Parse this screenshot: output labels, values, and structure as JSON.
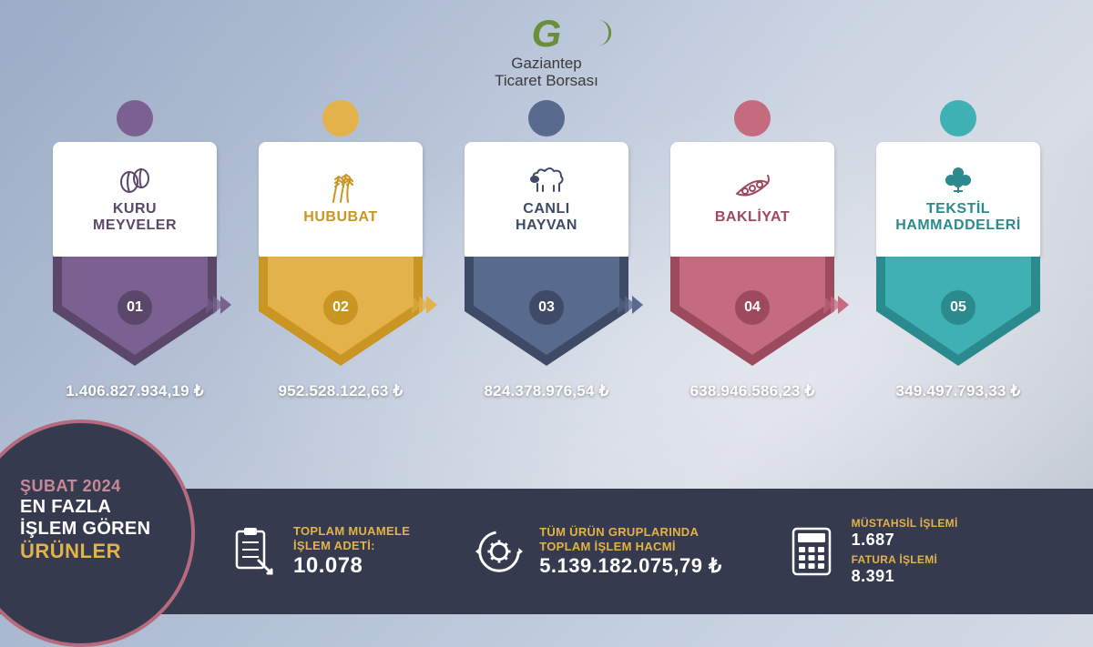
{
  "brand": {
    "mark": "G",
    "line1": "Gaziantep",
    "line2": "Ticaret Borsası",
    "accent_color": "#6b8e3a"
  },
  "colors": {
    "footer_bg": "#353a4e",
    "footer_ring": "#b66a7d",
    "accent_yellow": "#e4b24a"
  },
  "cards": [
    {
      "id": "kuru-meyveler",
      "rank": "01",
      "title": "KURU\nMEYVELER",
      "amount": "1.406.827.934,19 ₺",
      "color_dark": "#5a4769",
      "color_light": "#7a6191",
      "title_color": "#5a4769",
      "dot_color": "#7a6191",
      "icon": "pistachio"
    },
    {
      "id": "hububat",
      "rank": "02",
      "title": "HUBUBAT",
      "amount": "952.528.122,63 ₺",
      "color_dark": "#c99523",
      "color_light": "#e4b24a",
      "title_color": "#c99523",
      "dot_color": "#e4b24a",
      "icon": "wheat"
    },
    {
      "id": "canli-hayvan",
      "rank": "03",
      "title": "CANLI\nHAYVAN",
      "amount": "824.378.976,54 ₺",
      "color_dark": "#3e4a66",
      "color_light": "#596a8f",
      "title_color": "#3e4a66",
      "dot_color": "#596a8f",
      "icon": "sheep"
    },
    {
      "id": "bakliyat",
      "rank": "04",
      "title": "BAKLİYAT",
      "amount": "638.946.586,23 ₺",
      "color_dark": "#9e4a5e",
      "color_light": "#c56b80",
      "title_color": "#9e4a5e",
      "dot_color": "#c56b80",
      "icon": "pea"
    },
    {
      "id": "tekstil",
      "rank": "05",
      "title": "TEKSTİL\nHAMMADDELERİ",
      "amount": "349.497.793,33 ₺",
      "color_dark": "#2a8a8d",
      "color_light": "#3fb0b3",
      "title_color": "#2a8a8d",
      "dot_color": "#3fb0b3",
      "icon": "cotton"
    }
  ],
  "arrow_colors": [
    "#7a6191",
    "#e4b24a",
    "#596a8f",
    "#c56b80"
  ],
  "footer": {
    "date": "ŞUBAT 2024",
    "title_line1": "EN FAZLA",
    "title_line2": "İŞLEM GÖREN",
    "title_highlight": "ÜRÜNLER",
    "stat1_label1": "TOPLAM MUAMELE",
    "stat1_label2": "İŞLEM ADETİ:",
    "stat1_value": "10.078",
    "stat2_label1": "TÜM ÜRÜN GRUPLARINDA",
    "stat2_label2": "TOPLAM İŞLEM HACMİ",
    "stat2_value": "5.139.182.075,79 ₺",
    "stat3a_label": "MÜSTAHSİL İŞLEMİ",
    "stat3a_value": "1.687",
    "stat3b_label": "FATURA İŞLEMİ",
    "stat3b_value": "8.391"
  }
}
